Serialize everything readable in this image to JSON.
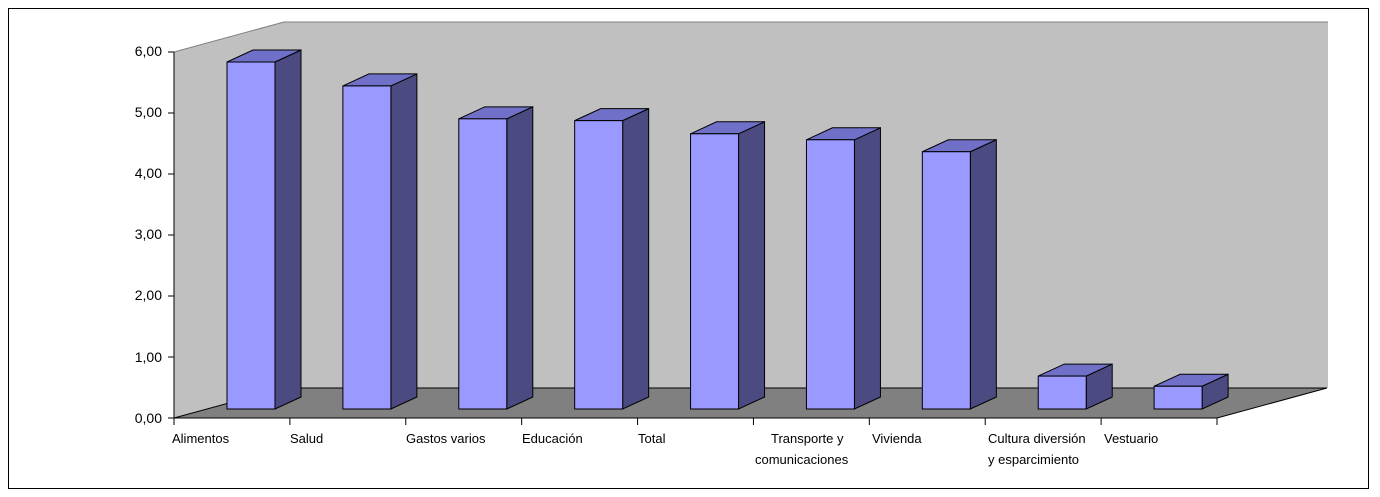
{
  "chart_data": {
    "type": "bar",
    "style": "3d-column",
    "categories": [
      "Alimentos",
      "Salud",
      "Gastos varios",
      "Educación",
      "Total",
      "Transporte y comunicaciones",
      "Vivienda",
      "Cultura diversión y esparcimiento",
      "Vestuario"
    ],
    "category_label_lines": [
      [
        "Alimentos"
      ],
      [
        "Salud"
      ],
      [
        "Gastos varios"
      ],
      [
        "Educación"
      ],
      [
        "Total"
      ],
      [
        "Transporte y",
        "comunicaciones"
      ],
      [
        "Vivienda"
      ],
      [
        "Cultura diversión",
        "y esparcimiento"
      ],
      [
        "Vestuario"
      ]
    ],
    "values": [
      5.8,
      5.4,
      4.85,
      4.82,
      4.6,
      4.5,
      4.3,
      0.55,
      0.38
    ],
    "ylim": [
      0,
      6
    ],
    "yticks": [
      "0,00",
      "1,00",
      "2,00",
      "3,00",
      "4,00",
      "5,00",
      "6,00"
    ],
    "title": "",
    "xlabel": "",
    "ylabel": "",
    "legend": "none",
    "colors": {
      "bar_front": "#9999ff",
      "bar_side": "#4b4b82",
      "bar_top": "#7070c8",
      "back_wall": "#c0c0c0",
      "floor": "#808080"
    }
  }
}
